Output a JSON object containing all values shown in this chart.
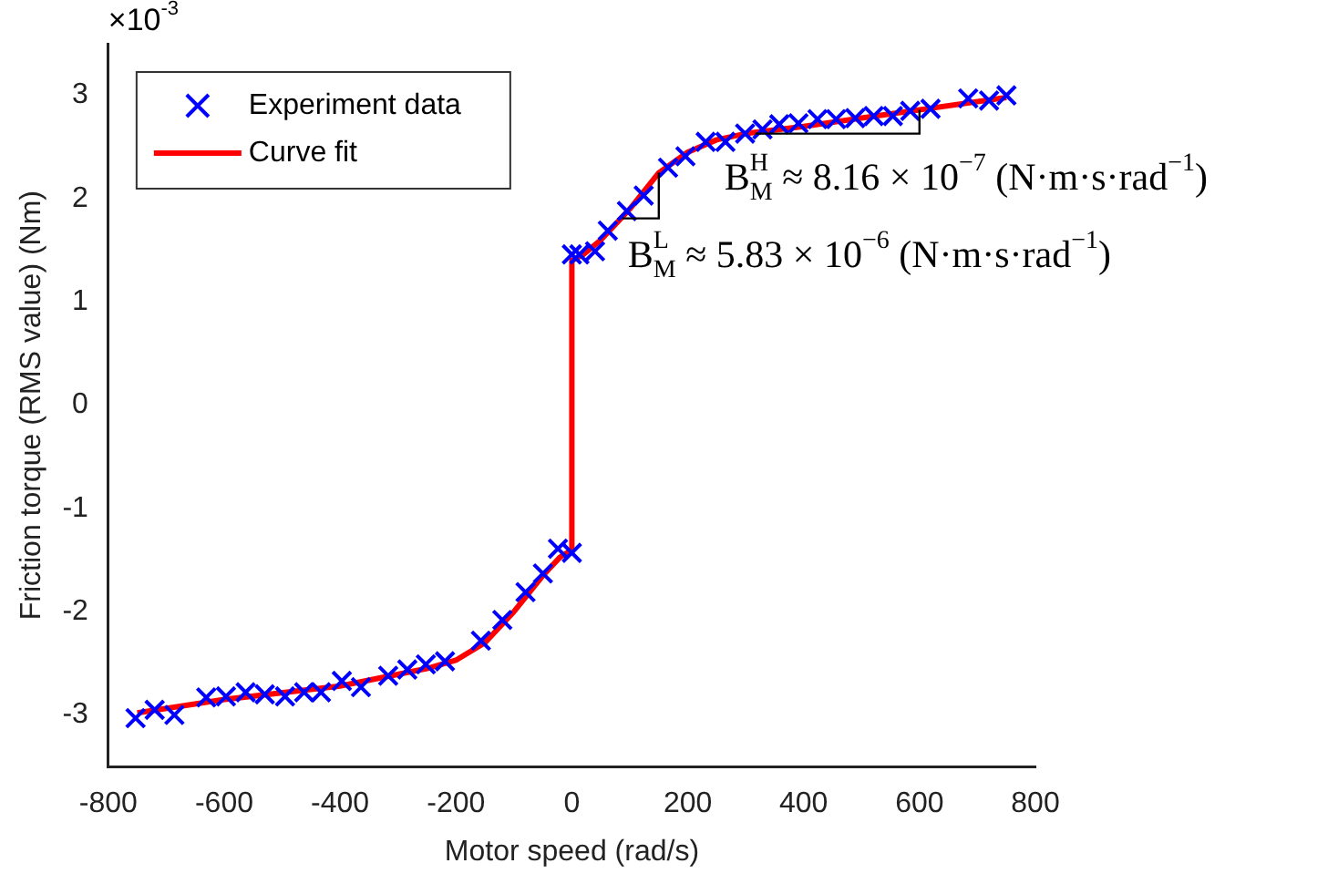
{
  "chart_data": {
    "type": "scatter",
    "xlabel": "Motor speed (rad/s)",
    "ylabel": "Friction torque (RMS value) (Nm)",
    "xlim": [
      -800,
      800
    ],
    "xticks": [
      -800,
      -600,
      -400,
      -200,
      0,
      200,
      400,
      600,
      800
    ],
    "ylim": [
      -3.5,
      3.5
    ],
    "yticks": [
      -3,
      -2,
      -1,
      0,
      1,
      2,
      3
    ],
    "grid": false,
    "legend": "top left",
    "series": [
      {
        "name": "Experiment data",
        "marker": "cross",
        "color": "#0000ff",
        "x": [
          -753,
          -720,
          -686,
          -631,
          -597,
          -563,
          -530,
          -495,
          -462,
          -433,
          -397,
          -364,
          -317,
          -284,
          -252,
          -219,
          -157,
          -120,
          -80,
          -50,
          -24,
          0,
          0,
          13,
          40,
          62,
          95,
          124,
          166,
          196,
          231,
          265,
          299,
          329,
          358,
          391,
          424,
          456,
          489,
          521,
          554,
          584,
          619,
          684,
          720,
          750
        ],
        "values": [
          -3.03,
          -2.95,
          -3.0,
          -2.83,
          -2.82,
          -2.78,
          -2.8,
          -2.82,
          -2.78,
          -2.78,
          -2.67,
          -2.73,
          -2.62,
          -2.56,
          -2.51,
          -2.48,
          -2.28,
          -2.08,
          -1.81,
          -1.63,
          -1.39,
          -1.43,
          1.46,
          1.46,
          1.49,
          1.69,
          1.88,
          2.03,
          2.3,
          2.41,
          2.55,
          2.55,
          2.63,
          2.67,
          2.72,
          2.73,
          2.77,
          2.77,
          2.78,
          2.8,
          2.8,
          2.85,
          2.87,
          2.97,
          2.95,
          3.0
        ]
      },
      {
        "name": "Curve fit",
        "type": "line",
        "marker": "none",
        "line_style": "solid",
        "color": "#ff0000",
        "x": [
          -750,
          -600,
          -400,
          -250,
          -200,
          -150,
          -100,
          -50,
          -20,
          0,
          0,
          20,
          50,
          100,
          150,
          200,
          250,
          300,
          400,
          500,
          600,
          750
        ],
        "values": [
          -2.98,
          -2.85,
          -2.72,
          -2.55,
          -2.47,
          -2.3,
          -2.0,
          -1.65,
          -1.47,
          -1.4,
          1.4,
          1.46,
          1.6,
          1.9,
          2.25,
          2.45,
          2.57,
          2.63,
          2.7,
          2.78,
          2.86,
          2.98
        ]
      }
    ],
    "annotations": [
      "×10$^{-3}$",
      {
        "text": "B$^{H}$$_{M}$ ≈ 8.16 × 10$^{−7}$ (N·m·s·rad$^{−1}$)",
        "x": 600,
        "y": 2.86
      },
      {
        "text": "B$^{L}$$_{M}$ ≈ 5.83 × 10$^{−6}$ (N·m·s·rad$^{−1}$)",
        "x": 150,
        "y": 2.25
      }
    ]
  }
}
